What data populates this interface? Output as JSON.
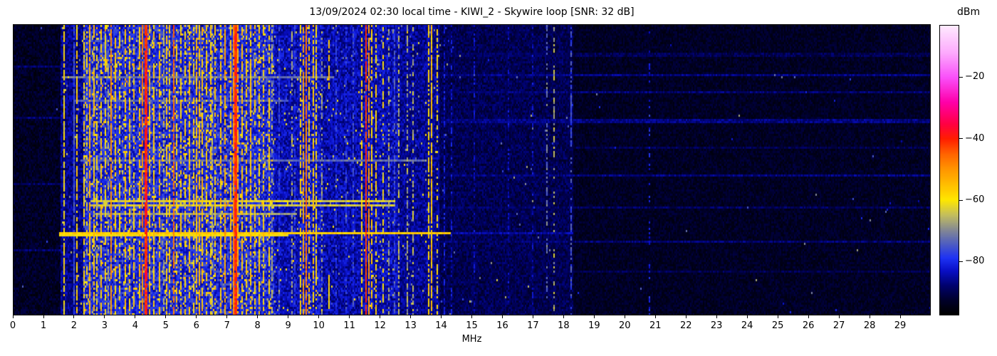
{
  "chart_data": {
    "type": "heatmap",
    "subtype": "radio-spectrogram-waterfall",
    "title": "13/09/2024 02:30 local time - KIWI_2 - Skywire loop [SNR: 32 dB]",
    "datetime_local": "13/09/2024 02:30",
    "station": "KIWI_2",
    "antenna": "Skywire loop",
    "snr_db": 32,
    "x_axis": {
      "label": "MHz",
      "min": 0,
      "max": 30,
      "ticks": [
        0,
        1,
        2,
        3,
        4,
        5,
        6,
        7,
        8,
        9,
        10,
        11,
        12,
        13,
        14,
        15,
        16,
        17,
        18,
        19,
        20,
        21,
        22,
        23,
        24,
        25,
        26,
        27,
        28,
        29
      ]
    },
    "y_axis": {
      "label": "",
      "ticks": [],
      "note": "time axis, unlabeled"
    },
    "colorbar": {
      "label": "dBm",
      "vmax": -3,
      "vmin": -97.5,
      "ticks": [
        {
          "value": -20,
          "label": "−20"
        },
        {
          "value": -40,
          "label": "−40"
        },
        {
          "value": -60,
          "label": "−60"
        },
        {
          "value": -80,
          "label": "−80"
        }
      ],
      "colormap_stops": [
        [
          -97.5,
          0,
          0,
          0
        ],
        [
          -93,
          0,
          0,
          40
        ],
        [
          -88,
          0,
          2,
          110
        ],
        [
          -83,
          10,
          16,
          200
        ],
        [
          -79,
          30,
          50,
          245
        ],
        [
          -75,
          72,
          88,
          200
        ],
        [
          -70,
          130,
          135,
          150
        ],
        [
          -65,
          195,
          190,
          95
        ],
        [
          -60,
          255,
          232,
          0
        ],
        [
          -55,
          255,
          190,
          0
        ],
        [
          -50,
          255,
          150,
          0
        ],
        [
          -45,
          255,
          100,
          0
        ],
        [
          -40,
          255,
          30,
          0
        ],
        [
          -35,
          255,
          0,
          70
        ],
        [
          -28,
          255,
          0,
          170
        ],
        [
          -20,
          250,
          80,
          250
        ],
        [
          -12,
          253,
          170,
          253
        ],
        [
          -3,
          255,
          235,
          255
        ]
      ]
    },
    "noise_seed": 1337,
    "background_bands": [
      [
        0,
        1.55,
        -93.5,
        3,
        0.001
      ],
      [
        1.55,
        2.3,
        -86.5,
        4,
        0.012
      ],
      [
        2.3,
        8.55,
        -80,
        6,
        0.08
      ],
      [
        8.55,
        9.35,
        -84,
        4.5,
        0.025
      ],
      [
        9.35,
        10.05,
        -82.5,
        5,
        0.035
      ],
      [
        10.05,
        11.35,
        -84.5,
        4.5,
        0.018
      ],
      [
        11.35,
        12.6,
        -84,
        4.5,
        0.022
      ],
      [
        12.6,
        13.95,
        -86,
        4,
        0.015
      ],
      [
        13.95,
        18.3,
        -90,
        3.2,
        0.004
      ],
      [
        18.3,
        30.01,
        -93.5,
        2.4,
        0.0012
      ]
    ],
    "carriers": [
      [
        1.64,
        -60,
        0.7,
        2
      ],
      [
        1.98,
        -76,
        0.9,
        2
      ],
      [
        2.07,
        -58,
        0.75,
        2
      ],
      [
        2.31,
        -60,
        0.6,
        2
      ],
      [
        2.42,
        -62,
        0.5,
        2
      ],
      [
        2.5,
        -54,
        0.85,
        3
      ],
      [
        2.62,
        -57,
        0.7,
        2
      ],
      [
        2.75,
        -60,
        0.6,
        2
      ],
      [
        2.88,
        -57,
        0.7,
        2
      ],
      [
        3.0,
        -60,
        0.55,
        2
      ],
      [
        3.08,
        -68,
        0.5,
        2
      ],
      [
        3.21,
        -50,
        0.8,
        2
      ],
      [
        3.33,
        -57,
        0.7,
        2
      ],
      [
        3.47,
        -60,
        0.55,
        2
      ],
      [
        3.64,
        -56,
        0.75,
        2
      ],
      [
        3.8,
        -57,
        0.7,
        2
      ],
      [
        3.95,
        -58,
        0.6,
        2
      ],
      [
        4.12,
        -56,
        0.7,
        2
      ],
      [
        4.22,
        -48,
        0.8,
        2
      ],
      [
        4.33,
        -40,
        0.95,
        3
      ],
      [
        4.47,
        -56,
        0.7,
        2
      ],
      [
        4.61,
        -57,
        0.65,
        2
      ],
      [
        4.78,
        -56,
        0.7,
        2
      ],
      [
        4.9,
        -66,
        0.5,
        2
      ],
      [
        5.0,
        -57,
        0.65,
        2
      ],
      [
        5.12,
        -58,
        0.6,
        2
      ],
      [
        5.24,
        -46,
        0.8,
        2
      ],
      [
        5.35,
        -58,
        0.6,
        2
      ],
      [
        5.47,
        -57,
        0.65,
        2
      ],
      [
        5.62,
        -58,
        0.6,
        2
      ],
      [
        5.75,
        -56,
        0.7,
        2
      ],
      [
        5.9,
        -58,
        0.6,
        2
      ],
      [
        6.0,
        -56,
        0.7,
        2
      ],
      [
        6.07,
        -55,
        0.75,
        2
      ],
      [
        6.16,
        -56,
        0.75,
        2
      ],
      [
        6.3,
        -57,
        0.65,
        2
      ],
      [
        6.45,
        -58,
        0.6,
        2
      ],
      [
        6.52,
        -66,
        0.5,
        2
      ],
      [
        6.62,
        -57,
        0.6,
        2
      ],
      [
        6.8,
        -56,
        0.7,
        2
      ],
      [
        6.9,
        -52,
        0.75,
        2
      ],
      [
        7.1,
        -56,
        0.7,
        2
      ],
      [
        7.2,
        -50,
        0.85,
        2
      ],
      [
        7.27,
        -40,
        0.95,
        3
      ],
      [
        7.35,
        -54,
        0.8,
        2
      ],
      [
        7.5,
        -56,
        0.7,
        2
      ],
      [
        7.62,
        -57,
        0.65,
        2
      ],
      [
        7.78,
        -56,
        0.7,
        2
      ],
      [
        7.92,
        -58,
        0.6,
        2
      ],
      [
        8.05,
        -57,
        0.65,
        2
      ],
      [
        8.2,
        -58,
        0.6,
        2
      ],
      [
        8.35,
        -57,
        0.6,
        2
      ],
      [
        8.46,
        -66,
        0.5,
        2
      ],
      [
        8.7,
        -78,
        0.7,
        2
      ],
      [
        9.1,
        -68,
        0.5,
        2
      ],
      [
        9.2,
        -78,
        0.6,
        2
      ],
      [
        9.4,
        -58,
        0.65,
        2
      ],
      [
        9.51,
        -52,
        0.8,
        2
      ],
      [
        9.57,
        -47,
        0.9,
        3
      ],
      [
        9.66,
        -56,
        0.7,
        2
      ],
      [
        9.8,
        -57,
        0.65,
        2
      ],
      [
        9.9,
        -58,
        0.6,
        2
      ],
      [
        10.1,
        -68,
        0.5,
        2
      ],
      [
        10.55,
        -78,
        0.6,
        2
      ],
      [
        10.9,
        -78,
        0.55,
        2
      ],
      [
        11.1,
        -77,
        0.6,
        2
      ],
      [
        11.39,
        -58,
        0.65,
        2
      ],
      [
        11.55,
        -41,
        0.95,
        2
      ],
      [
        11.63,
        -50,
        0.8,
        2
      ],
      [
        11.71,
        -57,
        0.65,
        2
      ],
      [
        11.86,
        -58,
        0.6,
        2
      ],
      [
        12.1,
        -60,
        0.55,
        2
      ],
      [
        12.3,
        -67,
        0.5,
        2
      ],
      [
        12.45,
        -76,
        0.6,
        2
      ],
      [
        12.6,
        -66,
        0.5,
        2
      ],
      [
        12.9,
        -67,
        0.5,
        2
      ],
      [
        13.1,
        -66,
        0.5,
        2
      ],
      [
        13.57,
        -58,
        0.7,
        2
      ],
      [
        13.7,
        -56,
        0.9,
        2
      ],
      [
        13.85,
        -60,
        0.55,
        2
      ],
      [
        14.1,
        -82,
        0.6,
        2
      ],
      [
        14.35,
        -83,
        0.5,
        2
      ],
      [
        15.1,
        -84,
        0.5,
        2
      ],
      [
        16.2,
        -84,
        0.45,
        2
      ],
      [
        17.0,
        -84,
        0.45,
        2
      ],
      [
        17.48,
        -72,
        0.45,
        2
      ],
      [
        17.7,
        -66,
        0.5,
        2
      ],
      [
        18.25,
        -76,
        0.55,
        2
      ],
      [
        20.8,
        -80,
        0.3,
        2
      ]
    ],
    "segments": [
      [
        10.32,
        -56,
        0.05,
        0.22,
        0.9
      ],
      [
        10.32,
        -57,
        0.86,
        0.98,
        0.9
      ]
    ],
    "streaks": [
      [
        0.14,
        0,
        1.55,
        -88
      ],
      [
        0.32,
        0,
        1.55,
        -88
      ],
      [
        0.55,
        0,
        1.55,
        -89
      ],
      [
        0.78,
        0,
        1.55,
        -88
      ],
      [
        0.175,
        1.6,
        10.5,
        -72
      ],
      [
        0.26,
        2.0,
        9.0,
        -74
      ],
      [
        0.47,
        2.2,
        13.5,
        -73
      ],
      [
        0.605,
        2.5,
        12.5,
        -63
      ],
      [
        0.62,
        2.5,
        12.5,
        -64
      ],
      [
        0.655,
        2.6,
        9.3,
        -68
      ],
      [
        0.72,
        1.5,
        14.3,
        -57
      ],
      [
        0.727,
        1.5,
        9.0,
        -60
      ],
      [
        0.72,
        14.3,
        18.3,
        -85
      ],
      [
        0.1,
        14,
        30,
        -90
      ],
      [
        0.17,
        14,
        30,
        -87
      ],
      [
        0.23,
        14,
        30,
        -88
      ],
      [
        0.33,
        14,
        30,
        -87
      ],
      [
        0.42,
        18.3,
        30,
        -90
      ],
      [
        0.52,
        14,
        30,
        -87
      ],
      [
        0.63,
        14,
        30,
        -89
      ],
      [
        0.745,
        14,
        30,
        -88
      ],
      [
        0.85,
        18,
        30,
        -90
      ]
    ]
  }
}
